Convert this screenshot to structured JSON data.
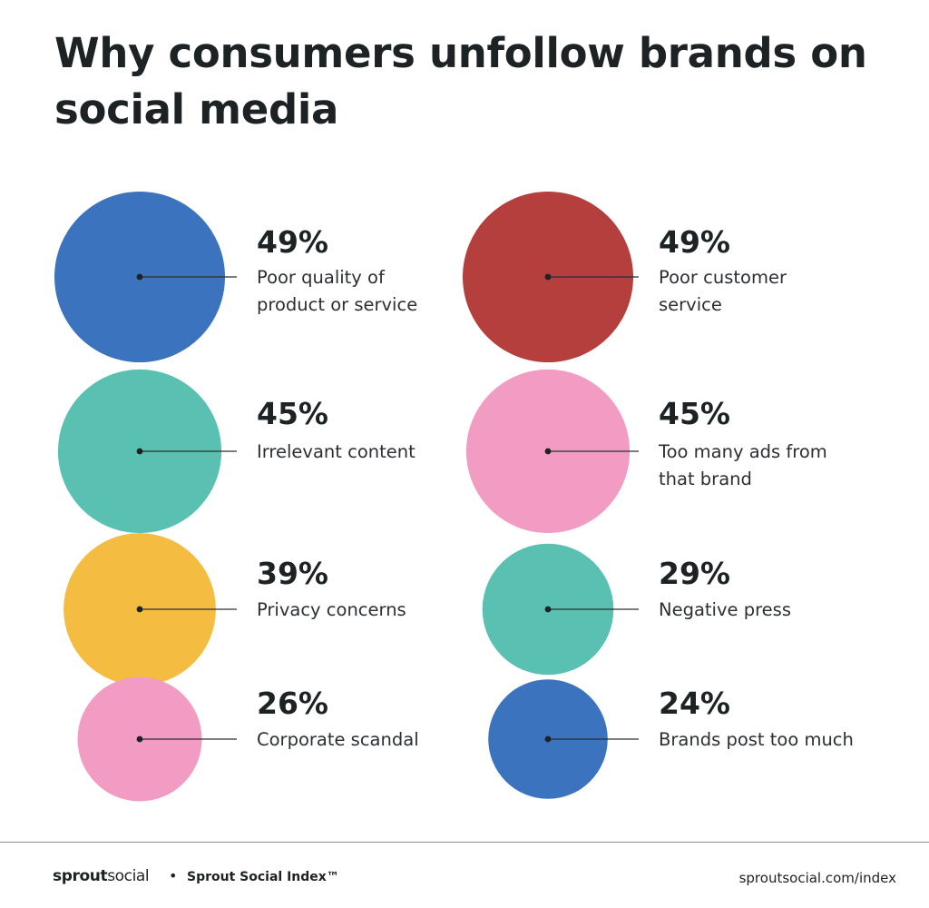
{
  "chart_data": {
    "type": "bubble",
    "title": "Why consumers unfollow brands on social media",
    "unit": "%",
    "items": [
      {
        "value": 49,
        "value_label": "49%",
        "label_lines": [
          "Poor quality of",
          "product or service"
        ],
        "color": "#3c73be"
      },
      {
        "value": 49,
        "value_label": "49%",
        "label_lines": [
          "Poor customer",
          "service"
        ],
        "color": "#b43f3c"
      },
      {
        "value": 45,
        "value_label": "45%",
        "label_lines": [
          "Irrelevant content"
        ],
        "color": "#5ac1b2"
      },
      {
        "value": 45,
        "value_label": "45%",
        "label_lines": [
          "Too many ads from",
          "that brand"
        ],
        "color": "#f29bc3"
      },
      {
        "value": 39,
        "value_label": "39%",
        "label_lines": [
          "Privacy concerns"
        ],
        "color": "#f4bd41"
      },
      {
        "value": 29,
        "value_label": "29%",
        "label_lines": [
          "Negative press"
        ],
        "color": "#5ac1b2"
      },
      {
        "value": 26,
        "value_label": "26%",
        "label_lines": [
          "Corporate scandal"
        ],
        "color": "#f29bc3"
      },
      {
        "value": 24,
        "value_label": "24%",
        "label_lines": [
          "Brands post too much"
        ],
        "color": "#3c73be"
      }
    ]
  },
  "footer": {
    "brand_bold": "sprout",
    "brand_light": "social",
    "separator": "•",
    "index_label": "Sprout Social Index™",
    "url": "sproutsocial.com/index"
  }
}
